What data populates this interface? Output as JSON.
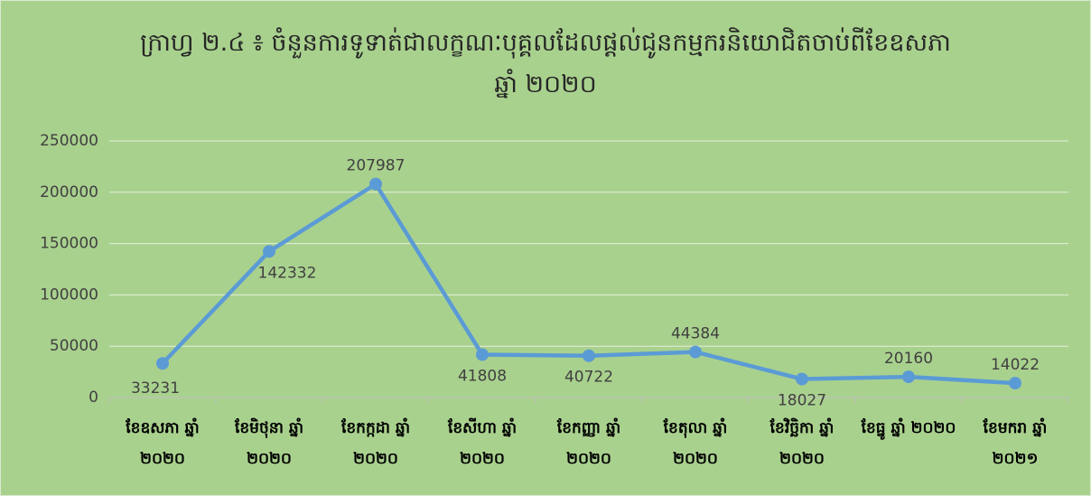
{
  "chart_data": {
    "type": "line",
    "title": [
      "ក្រាហ្វ ២.៤ ៖ ចំនួនការទូទាត់ជាលក្ខណៈបុគ្គលដែលផ្តល់ជូនកម្មករនិយោជិតចាប់ពីខែឧសភា",
      "ឆ្នាំ ២០២០"
    ],
    "categories": [
      "ខែឧសភា ឆ្នាំ ២០២០",
      "ខែមិថុនា ឆ្នាំ ២០២០",
      "ខែកក្កដា ឆ្នាំ ២០២០",
      "ខែសីហា ឆ្នាំ ២០២០",
      "ខែកញ្ញា ឆ្នាំ ២០២០",
      "ខែតុលា ឆ្នាំ ២០២០",
      "ខែវិច្ឆិកា ឆ្នាំ ២០២០",
      "ខែធ្នូ ឆ្នាំ ២០២០",
      "ខែមករា ឆ្នាំ ២០២១"
    ],
    "values": [
      33231,
      142332,
      207987,
      41808,
      40722,
      44384,
      18027,
      20160,
      14022
    ],
    "color": "#5b9bd5",
    "ylim": [
      0,
      250000
    ],
    "yticks": [
      0,
      50000,
      100000,
      150000,
      200000,
      250000
    ],
    "grid": true
  }
}
